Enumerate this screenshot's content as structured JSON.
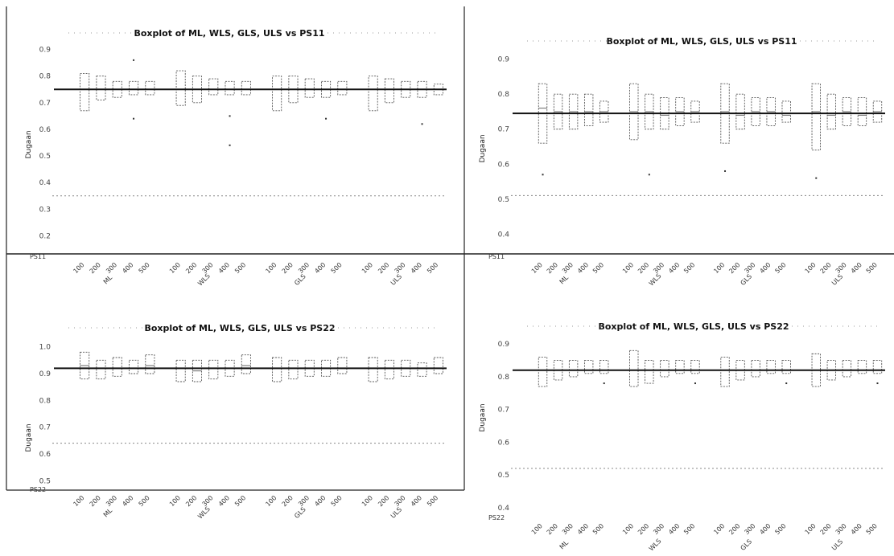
{
  "panels": [
    {
      "title": "Boxplot of ML, WLS, GLS, ULS vs PS11",
      "ylabel": "Dugaan",
      "yticks": [
        "0.9",
        "0.8",
        "0.7",
        "0.6",
        "0.5",
        "0.4",
        "0.3",
        "0.2"
      ],
      "first_label": "PS11",
      "groups": [
        "ML",
        "WLS",
        "GLS",
        "ULS"
      ],
      "sizes": [
        "100",
        "200",
        "300",
        "400",
        "500"
      ]
    },
    {
      "title": "Boxplot of ML, WLS, GLS, ULS vs PS11",
      "ylabel": "Dugaan",
      "yticks": [
        "0.9",
        "0.8",
        "0.7",
        "0.6",
        "0.5",
        "0.4"
      ],
      "first_label": "PS11",
      "groups": [
        "ML",
        "WLS",
        "GLS",
        "ULS"
      ],
      "sizes": [
        "100",
        "200",
        "300",
        "400",
        "500"
      ]
    },
    {
      "title": "Boxplot of ML, WLS, GLS, ULS vs PS22",
      "ylabel": "Dugaan",
      "yticks": [
        "1.0",
        "0.9",
        "0.8",
        "0.7",
        "0.6",
        "0.5"
      ],
      "first_label": "PS22",
      "groups": [
        "ML",
        "WLS",
        "GLS",
        "ULS"
      ],
      "sizes": [
        "100",
        "200",
        "300",
        "400",
        "500"
      ]
    },
    {
      "title": "Boxplot of ML, WLS, GLS, ULS vs PS22",
      "ylabel": "Dugaan",
      "yticks": [
        "0.9",
        "0.8",
        "0.7",
        "0.6",
        "0.5",
        "0.4"
      ],
      "first_label": "PS22",
      "groups": [
        "ML",
        "WLS",
        "GLS",
        "ULS"
      ],
      "sizes": [
        "100",
        "200",
        "300",
        "400",
        "500"
      ]
    }
  ],
  "chart_data": [
    {
      "type": "boxplot",
      "title": "Boxplot of ML, WLS, GLS, ULS vs PS11",
      "ylabel": "Dugaan",
      "ylim": [
        0.18,
        0.92
      ],
      "reference_line": 0.75,
      "categories": [
        "ML 100",
        "ML 200",
        "ML 300",
        "ML 400",
        "ML 500",
        "WLS 100",
        "WLS 200",
        "WLS 300",
        "WLS 400",
        "WLS 500",
        "GLS 100",
        "GLS 200",
        "GLS 300",
        "GLS 400",
        "GLS 500",
        "ULS 100",
        "ULS 200",
        "ULS 300",
        "ULS 400",
        "ULS 500"
      ],
      "q1": [
        0.67,
        0.71,
        0.72,
        0.73,
        0.73,
        0.69,
        0.7,
        0.73,
        0.73,
        0.73,
        0.67,
        0.7,
        0.72,
        0.72,
        0.73,
        0.67,
        0.7,
        0.72,
        0.72,
        0.73
      ],
      "q3": [
        0.81,
        0.8,
        0.78,
        0.78,
        0.78,
        0.82,
        0.8,
        0.79,
        0.78,
        0.78,
        0.8,
        0.8,
        0.79,
        0.78,
        0.78,
        0.8,
        0.79,
        0.78,
        0.78,
        0.77
      ],
      "median": [
        0.75,
        0.75,
        0.75,
        0.75,
        0.75,
        0.75,
        0.75,
        0.75,
        0.75,
        0.75,
        0.75,
        0.75,
        0.75,
        0.75,
        0.75,
        0.75,
        0.75,
        0.75,
        0.75,
        0.75
      ],
      "outliers": [
        [],
        [],
        [],
        [
          0.64,
          0.86
        ],
        [],
        [],
        [],
        [],
        [
          0.65,
          0.54
        ],
        [],
        [],
        [],
        [],
        [
          0.64
        ],
        [],
        [],
        [],
        [],
        [
          0.62
        ],
        []
      ]
    },
    {
      "type": "boxplot",
      "title": "Boxplot of ML, WLS, GLS, ULS vs PS11",
      "ylabel": "Dugaan",
      "ylim": [
        0.38,
        0.92
      ],
      "reference_line": 0.745,
      "categories": [
        "ML 100",
        "ML 200",
        "ML 300",
        "ML 400",
        "ML 500",
        "WLS 100",
        "WLS 200",
        "WLS 300",
        "WLS 400",
        "WLS 500",
        "GLS 100",
        "GLS 200",
        "GLS 300",
        "GLS 400",
        "GLS 500",
        "ULS 100",
        "ULS 200",
        "ULS 300",
        "ULS 400",
        "ULS 500"
      ],
      "q1": [
        0.66,
        0.7,
        0.7,
        0.71,
        0.72,
        0.67,
        0.7,
        0.7,
        0.71,
        0.72,
        0.66,
        0.7,
        0.71,
        0.71,
        0.72,
        0.64,
        0.7,
        0.71,
        0.71,
        0.72
      ],
      "q3": [
        0.83,
        0.8,
        0.8,
        0.8,
        0.78,
        0.83,
        0.8,
        0.79,
        0.79,
        0.78,
        0.83,
        0.8,
        0.79,
        0.79,
        0.78,
        0.83,
        0.8,
        0.79,
        0.79,
        0.78
      ],
      "median": [
        0.76,
        0.75,
        0.75,
        0.75,
        0.75,
        0.75,
        0.75,
        0.74,
        0.75,
        0.75,
        0.75,
        0.74,
        0.75,
        0.75,
        0.74,
        0.75,
        0.74,
        0.75,
        0.74,
        0.75
      ],
      "outliers": [
        [
          0.57
        ],
        [],
        [],
        [],
        [],
        [],
        [
          0.57
        ],
        [],
        [],
        [],
        [
          0.58
        ],
        [],
        [],
        [],
        [],
        [
          0.56
        ],
        [],
        [],
        [],
        []
      ]
    },
    {
      "type": "boxplot",
      "title": "Boxplot of ML, WLS, GLS, ULS vs PS22",
      "ylabel": "Dugaan",
      "ylim": [
        0.48,
        1.02
      ],
      "reference_line": 0.92,
      "categories": [
        "ML 100",
        "ML 200",
        "ML 300",
        "ML 400",
        "ML 500",
        "WLS 100",
        "WLS 200",
        "WLS 300",
        "WLS 400",
        "WLS 500",
        "GLS 100",
        "GLS 200",
        "GLS 300",
        "GLS 400",
        "GLS 500",
        "ULS 100",
        "ULS 200",
        "ULS 300",
        "ULS 400",
        "ULS 500"
      ],
      "q1": [
        0.88,
        0.88,
        0.89,
        0.9,
        0.9,
        0.87,
        0.87,
        0.88,
        0.89,
        0.9,
        0.87,
        0.88,
        0.89,
        0.89,
        0.9,
        0.87,
        0.88,
        0.89,
        0.89,
        0.9
      ],
      "q3": [
        0.98,
        0.95,
        0.96,
        0.95,
        0.97,
        0.95,
        0.95,
        0.95,
        0.95,
        0.97,
        0.96,
        0.95,
        0.95,
        0.95,
        0.96,
        0.96,
        0.95,
        0.95,
        0.94,
        0.96
      ],
      "median": [
        0.93,
        0.92,
        0.92,
        0.92,
        0.93,
        0.92,
        0.91,
        0.92,
        0.92,
        0.93,
        0.92,
        0.92,
        0.92,
        0.92,
        0.92,
        0.92,
        0.92,
        0.92,
        0.92,
        0.92
      ],
      "outliers": [
        [],
        [],
        [],
        [],
        [],
        [],
        [],
        [],
        [],
        [],
        [],
        [],
        [],
        [],
        [],
        [],
        [],
        [],
        [],
        []
      ]
    },
    {
      "type": "boxplot",
      "title": "Boxplot of ML, WLS, GLS, ULS vs PS22",
      "ylabel": "Dugaan",
      "ylim": [
        0.38,
        0.92
      ],
      "reference_line": 0.82,
      "categories": [
        "ML 100",
        "ML 200",
        "ML 300",
        "ML 400",
        "ML 500",
        "WLS 100",
        "WLS 200",
        "WLS 300",
        "WLS 400",
        "WLS 500",
        "GLS 100",
        "GLS 200",
        "GLS 300",
        "GLS 400",
        "GLS 500",
        "ULS 100",
        "ULS 200",
        "ULS 300",
        "ULS 400",
        "ULS 500"
      ],
      "q1": [
        0.77,
        0.79,
        0.8,
        0.81,
        0.81,
        0.77,
        0.78,
        0.8,
        0.81,
        0.81,
        0.77,
        0.79,
        0.8,
        0.81,
        0.81,
        0.77,
        0.79,
        0.8,
        0.81,
        0.81
      ],
      "q3": [
        0.86,
        0.85,
        0.85,
        0.85,
        0.85,
        0.88,
        0.85,
        0.85,
        0.85,
        0.85,
        0.86,
        0.85,
        0.85,
        0.85,
        0.85,
        0.87,
        0.85,
        0.85,
        0.85,
        0.85
      ],
      "median": [
        0.82,
        0.82,
        0.82,
        0.82,
        0.82,
        0.82,
        0.82,
        0.82,
        0.82,
        0.82,
        0.82,
        0.82,
        0.82,
        0.82,
        0.82,
        0.82,
        0.82,
        0.82,
        0.82,
        0.82
      ],
      "outliers": [
        [],
        [],
        [],
        [],
        [
          0.78
        ],
        [],
        [],
        [],
        [],
        [
          0.78
        ],
        [],
        [],
        [],
        [],
        [
          0.78
        ],
        [],
        [],
        [],
        [],
        [
          0.78
        ]
      ]
    }
  ]
}
